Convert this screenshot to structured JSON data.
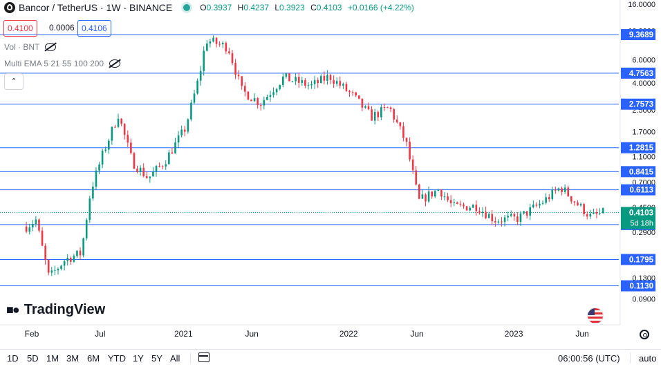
{
  "header": {
    "symbol_title": "Bancor / TetherUS · 1W · BINANCE",
    "ohlc": [
      {
        "k": "O",
        "v": "0.3937"
      },
      {
        "k": "H",
        "v": "0.4237"
      },
      {
        "k": "L",
        "v": "0.3923"
      },
      {
        "k": "C",
        "v": "0.4103"
      },
      {
        "k": "",
        "v": "+0.0166 (+4.22%)"
      }
    ],
    "sell_price": "0.4100",
    "spread": "0.0006",
    "buy_price": "0.4106"
  },
  "indicators": {
    "volume_label": "Vol · BNT",
    "ema_label": "Multi EMA 5 21 55 100 200"
  },
  "brand": "TradingView",
  "toolbar": {
    "ranges": [
      "1D",
      "5D",
      "1M",
      "3M",
      "6M",
      "YTD",
      "1Y",
      "5Y",
      "All"
    ],
    "clock": "06:00:56 (UTC)",
    "scale_mode": "auto"
  },
  "colors": {
    "up": "#089981",
    "down": "#f23645",
    "level": "#2962ff",
    "accent": "#2962ff"
  },
  "chart_data": {
    "type": "candlestick",
    "scale": "log",
    "y_ticks": [
      "16.0000",
      "10.0000",
      "6.0000",
      "4.0000",
      "2.5000",
      "1.7000",
      "1.1000",
      "0.7000",
      "0.4500",
      "0.2900",
      "0.1900",
      "0.1300",
      "0.0900"
    ],
    "y_tick_values": [
      16,
      10,
      6,
      4,
      2.5,
      1.7,
      1.1,
      0.7,
      0.45,
      0.29,
      0.19,
      0.13,
      0.09
    ],
    "x_ticks": [
      {
        "label": "Feb",
        "date": "2020-02-01"
      },
      {
        "label": "Jul",
        "date": "2020-07-01"
      },
      {
        "label": "2021",
        "date": "2021-01-01"
      },
      {
        "label": "Jun",
        "date": "2021-06-01"
      },
      {
        "label": "2022",
        "date": "2022-01-01"
      },
      {
        "label": "Jun",
        "date": "2022-06-01"
      },
      {
        "label": "2023",
        "date": "2023-01-01"
      },
      {
        "label": "Jun",
        "date": "2023-06-01"
      }
    ],
    "horizontal_levels": [
      "9.3689",
      "4.7563",
      "2.7573",
      "1.2815",
      "0.8415",
      "0.6113",
      "0.3320",
      "0.1795",
      "0.1130"
    ],
    "last_price": "0.4103",
    "countdown": "5d 18h",
    "price_path": [
      {
        "date": "2020-01-20",
        "price": 0.32
      },
      {
        "date": "2020-02-10",
        "price": 0.36
      },
      {
        "date": "2020-03-10",
        "price": 0.13
      },
      {
        "date": "2020-04-15",
        "price": 0.18
      },
      {
        "date": "2020-05-20",
        "price": 0.2
      },
      {
        "date": "2020-06-10",
        "price": 0.6
      },
      {
        "date": "2020-07-05",
        "price": 1.1
      },
      {
        "date": "2020-08-10",
        "price": 2.3
      },
      {
        "date": "2020-09-10",
        "price": 1.0
      },
      {
        "date": "2020-10-15",
        "price": 0.75
      },
      {
        "date": "2020-11-20",
        "price": 1.0
      },
      {
        "date": "2021-01-05",
        "price": 1.8
      },
      {
        "date": "2021-02-05",
        "price": 4.5
      },
      {
        "date": "2021-02-20",
        "price": 8.5
      },
      {
        "date": "2021-04-10",
        "price": 7.5
      },
      {
        "date": "2021-05-10",
        "price": 3.5
      },
      {
        "date": "2021-06-20",
        "price": 2.8
      },
      {
        "date": "2021-08-10",
        "price": 4.4
      },
      {
        "date": "2021-10-10",
        "price": 3.8
      },
      {
        "date": "2021-11-20",
        "price": 4.5
      },
      {
        "date": "2022-01-10",
        "price": 3.2
      },
      {
        "date": "2022-02-20",
        "price": 2.2
      },
      {
        "date": "2022-04-01",
        "price": 2.6
      },
      {
        "date": "2022-05-08",
        "price": 1.4
      },
      {
        "date": "2022-06-05",
        "price": 0.5
      },
      {
        "date": "2022-07-20",
        "price": 0.62
      },
      {
        "date": "2022-08-20",
        "price": 0.45
      },
      {
        "date": "2022-10-10",
        "price": 0.46
      },
      {
        "date": "2022-11-20",
        "price": 0.36
      },
      {
        "date": "2023-01-10",
        "price": 0.37
      },
      {
        "date": "2023-03-01",
        "price": 0.48
      },
      {
        "date": "2023-04-15",
        "price": 0.64
      },
      {
        "date": "2023-05-20",
        "price": 0.48
      },
      {
        "date": "2023-06-20",
        "price": 0.38
      },
      {
        "date": "2023-07-20",
        "price": 0.41
      }
    ]
  }
}
